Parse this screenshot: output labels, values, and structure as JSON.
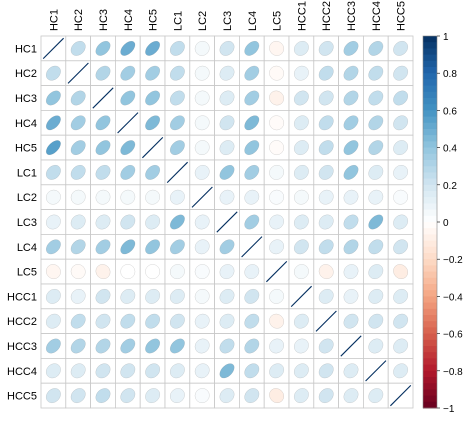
{
  "chart_data": {
    "type": "heatmap",
    "style": "correlation-ellipse",
    "variables": [
      "HC1",
      "HC2",
      "HC3",
      "HC4",
      "HC5",
      "LC1",
      "LC2",
      "LC3",
      "LC4",
      "LC5",
      "HCC1",
      "HCC2",
      "HCC3",
      "HCC4",
      "HCC5"
    ],
    "matrix": [
      [
        1.0,
        0.25,
        0.4,
        0.5,
        0.5,
        0.25,
        0.05,
        0.2,
        0.4,
        -0.05,
        0.15,
        0.2,
        0.35,
        0.3,
        0.2
      ],
      [
        0.25,
        1.0,
        0.3,
        0.35,
        0.35,
        0.25,
        0.05,
        0.15,
        0.35,
        -0.03,
        0.1,
        0.25,
        0.3,
        0.25,
        0.2
      ],
      [
        0.4,
        0.3,
        1.0,
        0.4,
        0.4,
        0.25,
        0.05,
        0.15,
        0.35,
        -0.07,
        0.2,
        0.2,
        0.3,
        0.25,
        0.25
      ],
      [
        0.5,
        0.35,
        0.4,
        1.0,
        0.45,
        0.35,
        0.05,
        0.2,
        0.45,
        -0.02,
        0.15,
        0.25,
        0.35,
        0.3,
        0.2
      ],
      [
        0.55,
        0.35,
        0.4,
        0.45,
        1.0,
        0.35,
        0.05,
        0.15,
        0.4,
        -0.02,
        0.15,
        0.25,
        0.4,
        0.3,
        0.15
      ],
      [
        0.25,
        0.25,
        0.25,
        0.35,
        0.35,
        1.0,
        0.1,
        0.4,
        0.35,
        0.05,
        0.15,
        0.2,
        0.4,
        0.15,
        0.1
      ],
      [
        0.05,
        0.05,
        0.05,
        0.05,
        0.05,
        0.1,
        1.0,
        0.1,
        0.1,
        0.03,
        0.05,
        0.1,
        0.1,
        0.1,
        0.03
      ],
      [
        0.1,
        0.15,
        0.15,
        0.2,
        0.15,
        0.45,
        0.1,
        1.0,
        0.35,
        0.1,
        0.15,
        0.15,
        0.25,
        0.45,
        0.15
      ],
      [
        0.35,
        0.3,
        0.35,
        0.45,
        0.4,
        0.35,
        0.1,
        0.35,
        1.0,
        0.1,
        0.2,
        0.25,
        0.3,
        0.25,
        0.2
      ],
      [
        -0.05,
        -0.03,
        -0.07,
        0.0,
        0.0,
        0.05,
        0.03,
        0.1,
        0.1,
        1.0,
        0.05,
        -0.07,
        0.1,
        0.15,
        -0.1
      ],
      [
        0.15,
        0.1,
        0.2,
        0.15,
        0.15,
        0.15,
        0.05,
        0.15,
        0.2,
        0.05,
        1.0,
        0.15,
        0.1,
        0.15,
        0.15
      ],
      [
        0.15,
        0.25,
        0.2,
        0.25,
        0.25,
        0.2,
        0.1,
        0.15,
        0.25,
        -0.07,
        0.15,
        1.0,
        0.2,
        0.2,
        0.2
      ],
      [
        0.35,
        0.3,
        0.3,
        0.35,
        0.4,
        0.4,
        0.1,
        0.25,
        0.3,
        0.1,
        0.1,
        0.2,
        1.0,
        0.15,
        0.15
      ],
      [
        0.15,
        0.15,
        0.2,
        0.2,
        0.2,
        0.15,
        0.1,
        0.45,
        0.25,
        0.15,
        0.15,
        0.2,
        0.15,
        1.0,
        0.15
      ],
      [
        0.2,
        0.2,
        0.25,
        0.2,
        0.15,
        0.1,
        0.03,
        0.15,
        0.2,
        -0.1,
        0.15,
        0.2,
        0.15,
        0.15,
        1.0
      ]
    ],
    "color_scale": {
      "min": -1,
      "max": 1,
      "stops": [
        "#67001F",
        "#B2182B",
        "#D6604D",
        "#F4A582",
        "#FDDBC7",
        "#FFFFFF",
        "#D1E5F0",
        "#92C5DE",
        "#4393C3",
        "#2166AC",
        "#053061"
      ],
      "ticks": [
        1,
        0.8,
        0.6,
        0.4,
        0.2,
        0,
        -0.2,
        -0.4,
        -0.6,
        -0.8,
        -1
      ],
      "tick_labels": [
        "1",
        "0.8",
        "0.6",
        "0.4",
        "0.2",
        "0",
        "−0.2",
        "−0.4",
        "−0.6",
        "−0.8",
        "−1"
      ]
    },
    "grid": true,
    "legend": "right"
  }
}
